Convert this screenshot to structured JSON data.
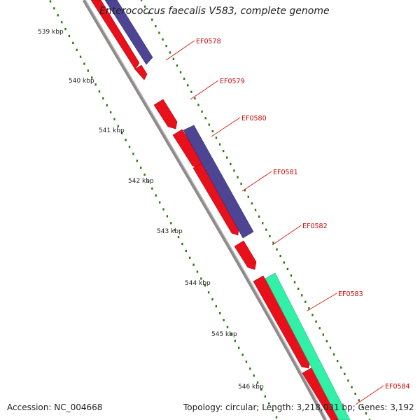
{
  "title": "Enterococcus faecalis V583, complete genome",
  "footer": {
    "accession": "Accession: NC_004668",
    "topology": "Topology: circular; Length: 3,218,031 bp; Genes: 3,192"
  },
  "colors": {
    "backbone": "#8e8a8a",
    "ruler_tick": "#2a7a10",
    "cds": "#e8101a",
    "blast_blue": "#4d4594",
    "blast_green": "#33f0a8",
    "label": "#cc0000",
    "label_line": "#e02020"
  },
  "ruler": [
    "539 kbp",
    "540 kbp",
    "541 kbp",
    "542 kbp",
    "543 kbp",
    "544 kbp",
    "545 kbp",
    "546 kbp"
  ],
  "genes": [
    "EF0578",
    "EF0579",
    "EF0580",
    "EF0581",
    "EF0582",
    "EF0583",
    "EF0584"
  ]
}
